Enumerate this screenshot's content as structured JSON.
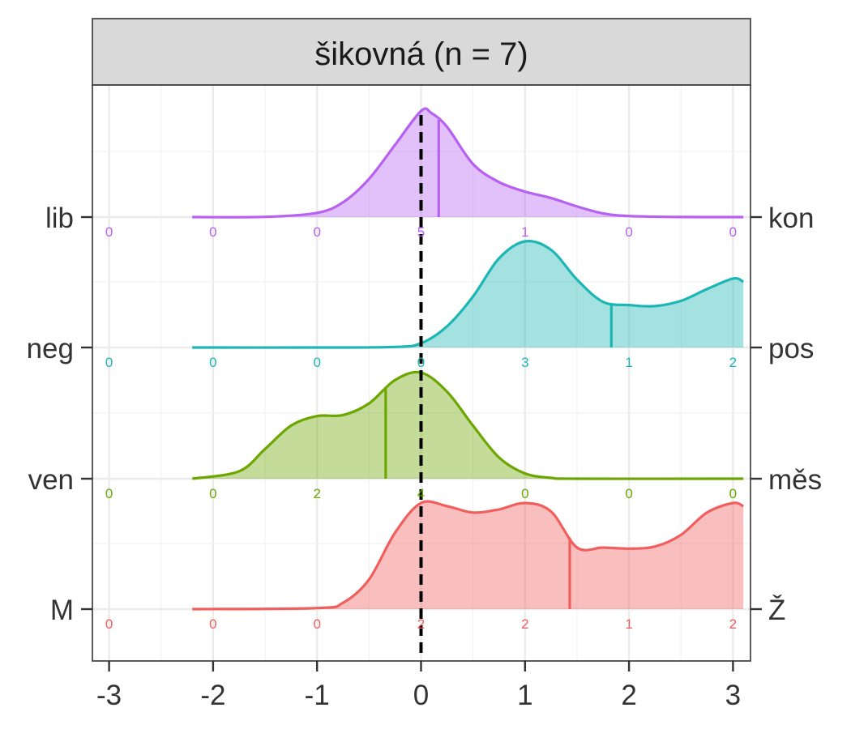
{
  "chart_data": {
    "type": "ridgeline",
    "title": "šikovná (n = 7)",
    "xlabel": "",
    "ylabel": "",
    "xlim": [
      -3,
      3
    ],
    "x_ticks": [
      "-3",
      "-2",
      "-1",
      "0",
      "1",
      "2",
      "3"
    ],
    "grid": true,
    "reference_line_x": 0,
    "count_positions": [
      -3,
      -2,
      -1,
      0,
      1,
      2,
      3
    ],
    "series": [
      {
        "left_label": "lib",
        "right_label": "kon",
        "color": "#B761F0",
        "counts": [
          0,
          0,
          0,
          5,
          1,
          0,
          0
        ],
        "mean": 0.17,
        "density": [
          [
            -2.2,
            0
          ],
          [
            -1.5,
            0.002
          ],
          [
            -1.0,
            0.04
          ],
          [
            -0.75,
            0.14
          ],
          [
            -0.5,
            0.36
          ],
          [
            -0.25,
            0.68
          ],
          [
            0.0,
            1.0
          ],
          [
            0.1,
            0.98
          ],
          [
            0.25,
            0.85
          ],
          [
            0.5,
            0.5
          ],
          [
            0.75,
            0.33
          ],
          [
            1.0,
            0.24
          ],
          [
            1.25,
            0.18
          ],
          [
            1.5,
            0.1
          ],
          [
            1.75,
            0.035
          ],
          [
            2.0,
            0.01
          ],
          [
            2.5,
            0.001
          ],
          [
            3.1,
            0
          ]
        ]
      },
      {
        "left_label": "neg",
        "right_label": "pos",
        "color": "#1CB6B4",
        "counts": [
          0,
          0,
          0,
          0,
          3,
          1,
          2
        ],
        "mean": 1.83,
        "density": [
          [
            -2.2,
            0
          ],
          [
            -1.0,
            0
          ],
          [
            -0.25,
            0.005
          ],
          [
            0.0,
            0.04
          ],
          [
            0.25,
            0.2
          ],
          [
            0.5,
            0.48
          ],
          [
            0.75,
            0.84
          ],
          [
            1.0,
            1.0
          ],
          [
            1.25,
            0.92
          ],
          [
            1.5,
            0.64
          ],
          [
            1.75,
            0.43
          ],
          [
            2.0,
            0.4
          ],
          [
            2.25,
            0.39
          ],
          [
            2.5,
            0.44
          ],
          [
            2.75,
            0.55
          ],
          [
            3.0,
            0.65
          ],
          [
            3.1,
            0.62
          ]
        ]
      },
      {
        "left_label": "ven",
        "right_label": "měs",
        "color": "#6CA600",
        "counts": [
          0,
          0,
          2,
          4,
          0,
          0,
          0
        ],
        "mean": -0.34,
        "density": [
          [
            -2.2,
            0
          ],
          [
            -1.75,
            0.07
          ],
          [
            -1.5,
            0.28
          ],
          [
            -1.25,
            0.5
          ],
          [
            -1.0,
            0.59
          ],
          [
            -0.75,
            0.6
          ],
          [
            -0.5,
            0.71
          ],
          [
            -0.25,
            0.93
          ],
          [
            0.0,
            1.0
          ],
          [
            0.25,
            0.82
          ],
          [
            0.5,
            0.5
          ],
          [
            0.75,
            0.2
          ],
          [
            1.0,
            0.05
          ],
          [
            1.25,
            0.008
          ],
          [
            1.5,
            0
          ],
          [
            3.1,
            0
          ]
        ]
      },
      {
        "left_label": "M",
        "right_label": "Ž",
        "color": "#F05E5E",
        "counts": [
          0,
          0,
          0,
          2,
          2,
          1,
          2
        ],
        "mean": 1.43,
        "density": [
          [
            -2.2,
            0
          ],
          [
            -1.0,
            0.01
          ],
          [
            -0.75,
            0.06
          ],
          [
            -0.5,
            0.28
          ],
          [
            -0.25,
            0.72
          ],
          [
            0.0,
            1.0
          ],
          [
            0.25,
            0.97
          ],
          [
            0.5,
            0.91
          ],
          [
            0.75,
            0.94
          ],
          [
            1.0,
            1.0
          ],
          [
            1.25,
            0.92
          ],
          [
            1.5,
            0.58
          ],
          [
            1.75,
            0.58
          ],
          [
            2.0,
            0.57
          ],
          [
            2.25,
            0.59
          ],
          [
            2.5,
            0.7
          ],
          [
            2.75,
            0.91
          ],
          [
            3.0,
            1.0
          ],
          [
            3.1,
            0.97
          ]
        ]
      }
    ]
  }
}
